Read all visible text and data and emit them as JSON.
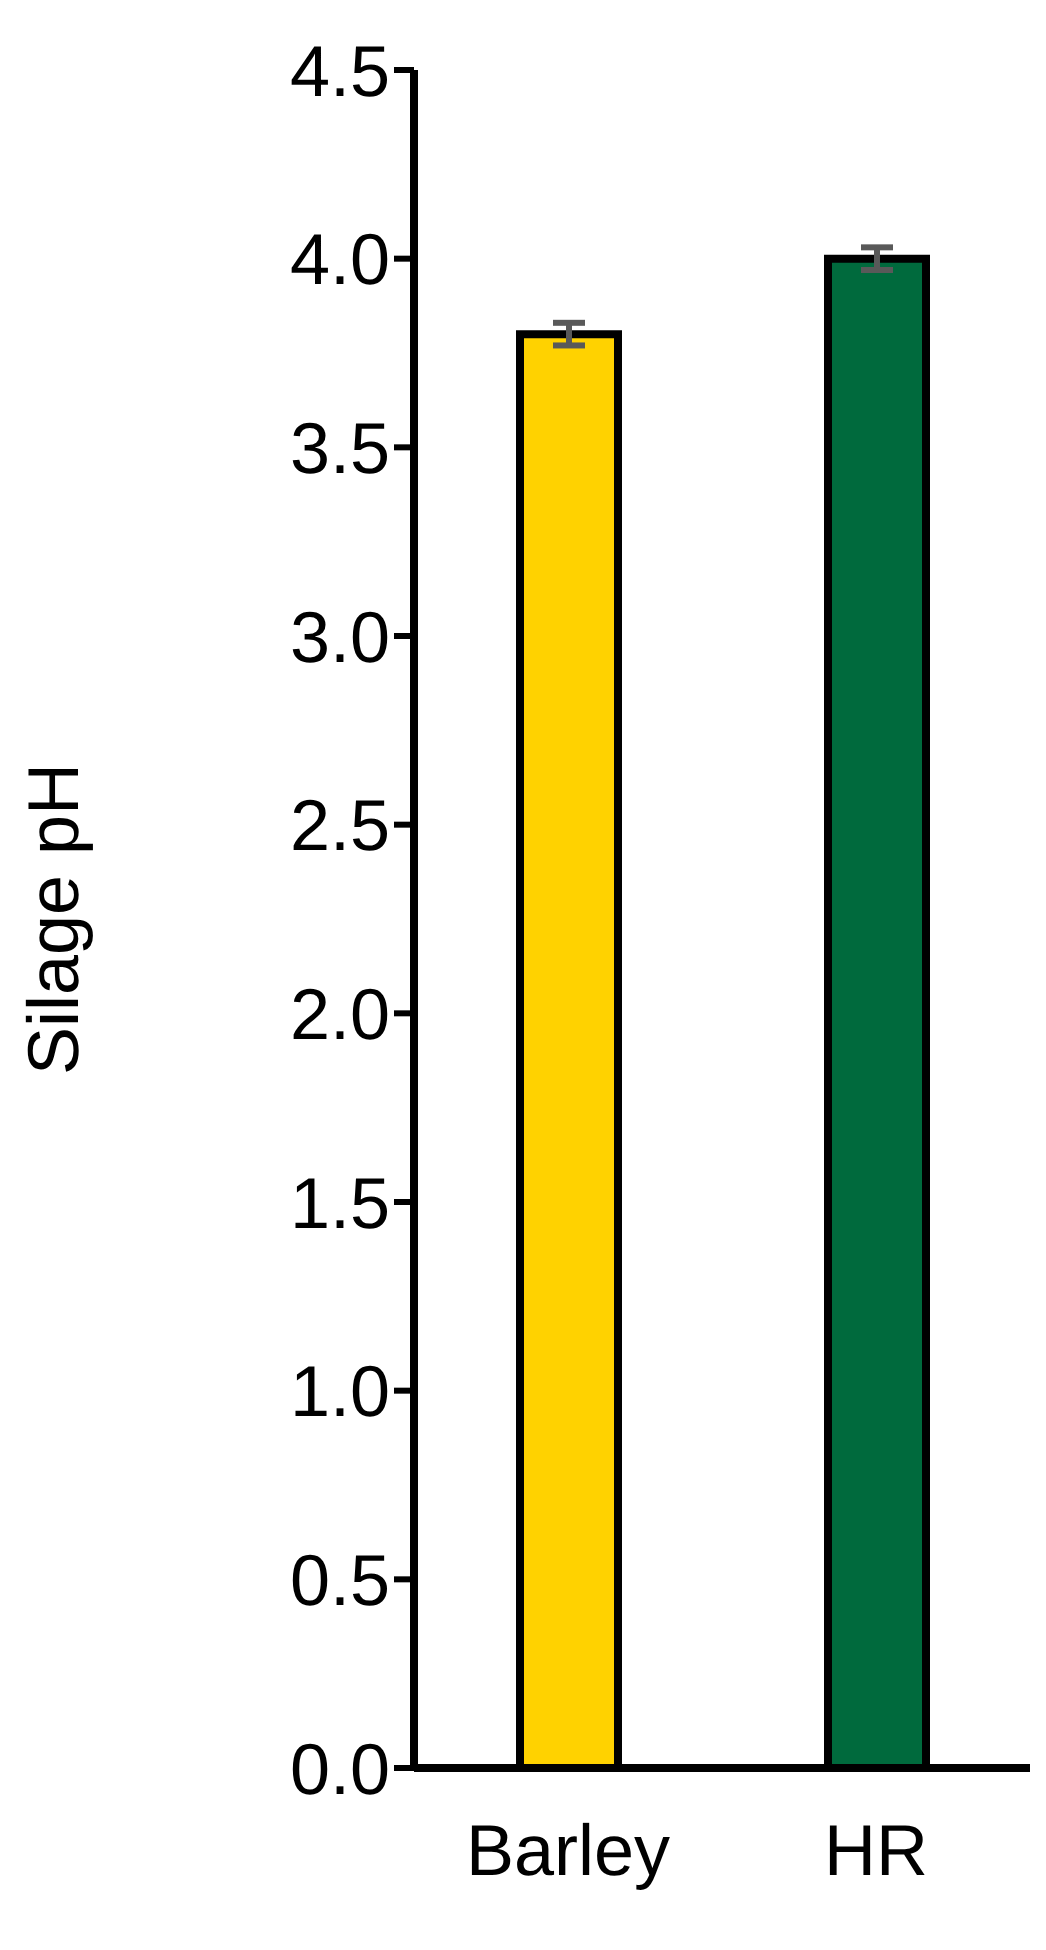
{
  "chart_data": {
    "type": "bar",
    "ylabel": "Silage pH",
    "categories": [
      "Barley",
      "HR"
    ],
    "values": [
      3.8,
      4.0
    ],
    "colors": [
      "#ffd200",
      "#006a3d"
    ],
    "errors": [
      0.03,
      0.03
    ],
    "ylim": [
      0,
      4.5
    ],
    "yticks": [
      {
        "value": 0,
        "label": "0.0"
      },
      0.5,
      {
        "value": 1,
        "label": "1.0"
      },
      1.5,
      {
        "value": 2,
        "label": "2.0"
      },
      2.5,
      {
        "value": 3,
        "label": "3.0"
      },
      3.5,
      {
        "value": 4,
        "label": "4.0"
      },
      4.5
    ],
    "grid": false,
    "legend": false
  }
}
